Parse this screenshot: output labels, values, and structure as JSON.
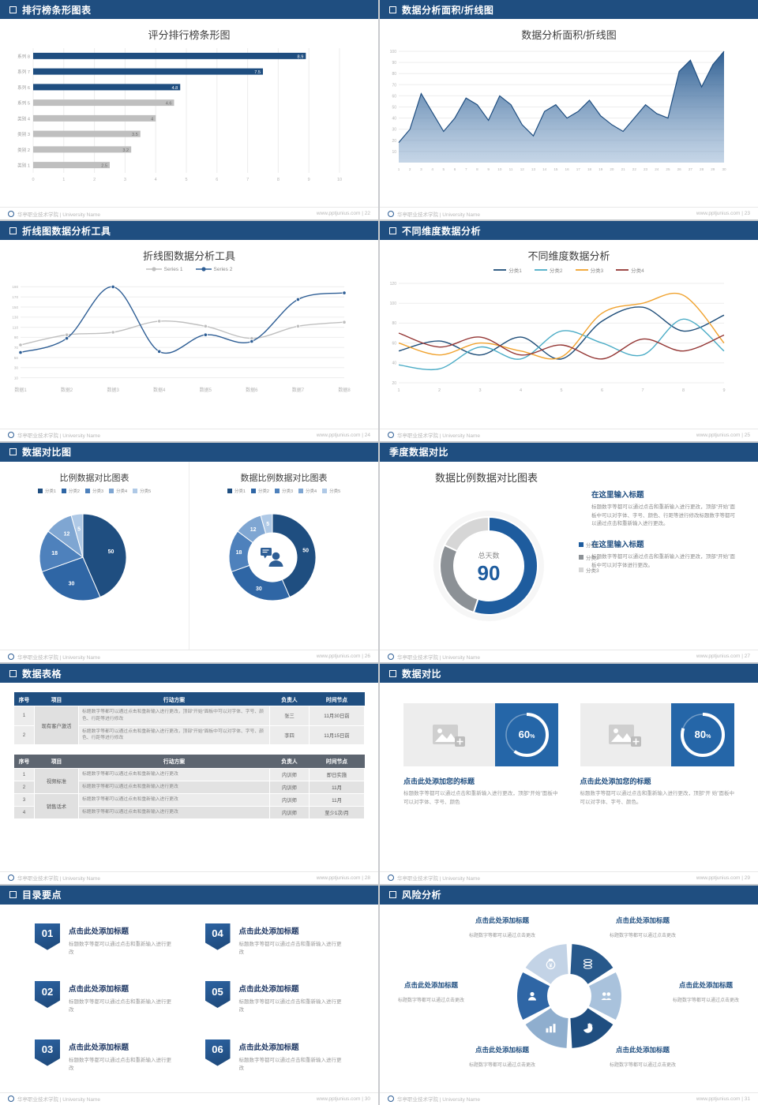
{
  "theme": {
    "header_blue": "#1F4E80",
    "accent_blue": "#2E5E95",
    "bar_gray": "#BFBFBF"
  },
  "footer": {
    "org": "华亭职业技术学院 | University Name",
    "site": "www.pptjunius.com"
  },
  "slides": [
    {
      "header": "排行榜条形图表",
      "page": "22",
      "title": "评分排行榜条形图"
    },
    {
      "header": "数据分析面积/折线图",
      "page": "23",
      "title": "数据分析面积/折线图"
    },
    {
      "header": "折线图数据分析工具",
      "page": "24",
      "title": "折线图数据分析工具"
    },
    {
      "header": "不同维度数据分析",
      "page": "25",
      "title": "不同维度数据分析"
    },
    {
      "header": "数据对比图",
      "page": "26",
      "title_left": "比例数据对比图表",
      "title_right": "数据比例数据对比图表"
    },
    {
      "header": "季度数据对比",
      "page": "27",
      "title": "数据比例数据对比图表",
      "blocks": [
        {
          "heading": "在这里输入标题",
          "body": "标题数字等都可以通过点击和重新输入进行更改，顶部“开始”面板中可以对字体、字号、颜色、行距等进行修改标题数字等都可以通过点击和重新输入进行更改。"
        },
        {
          "heading": "在这里输入标题",
          "body": "标题数字等都可以通过点击和重新输入进行更改，顶部“开始”面板中可以对字体进行更改。"
        }
      ]
    },
    {
      "header": "数据表格",
      "page": "28",
      "table1": {
        "headers": [
          "序号",
          "项目",
          "行动方案",
          "负责人",
          "时间节点"
        ],
        "project": "现有客户激活",
        "rows": [
          {
            "no": "1",
            "plan": "标题数字等都可以通过点击和重新输入进行更改，顶部“开始”面板中可以对字体、字号、颜色、行距等进行修改",
            "owner": "张三",
            "time": "11月30日前"
          },
          {
            "no": "2",
            "plan": "标题数字等都可以通过点击和重新输入进行更改，顶部“开始”面板中可以对字体、字号、颜色、行距等进行修改",
            "owner": "李四",
            "time": "11月15日前"
          }
        ]
      },
      "table2": {
        "headers": [
          "序号",
          "项目",
          "行动方案",
          "负责人",
          "时间节点"
        ],
        "projects": [
          "视频标准",
          "销售话术"
        ],
        "rows": [
          {
            "no": "1",
            "plan": "标题数字等都可以通过点击和重新输入进行更改",
            "owner": "内训师",
            "time": "即日实施"
          },
          {
            "no": "2",
            "plan": "标题数字等都可以通过点击和重新输入进行更改",
            "owner": "内训师",
            "time": "11月"
          },
          {
            "no": "3",
            "plan": "标题数字等都可以通过点击和重新输入进行更改",
            "owner": "内训师",
            "time": "11月"
          },
          {
            "no": "4",
            "plan": "标题数字等都可以通过点击和重新输入进行更改",
            "owner": "内训师",
            "time": "至少1次/月"
          }
        ]
      }
    },
    {
      "header": "数据对比",
      "page": "29",
      "cards": [
        {
          "percent": 60,
          "title": "点击此处添加您的标题",
          "body": "标题数字等都可以通过点击和重新输入进行更改，顶部“开始”面板中可以对字体、字号、颜色"
        },
        {
          "percent": 80,
          "title": "点击此处添加您的标题",
          "body": "标题数字等都可以通过点击和重新输入进行更改，顶部“开 始”面板中可以对字体、字号、颜色。"
        }
      ]
    },
    {
      "header": "目录要点",
      "page": "30",
      "items": [
        {
          "num": "01",
          "title": "点击此处添加标题",
          "body": "标题数字等都可以通过点击和重新输入进行更改"
        },
        {
          "num": "02",
          "title": "点击此处添加标题",
          "body": "标题数字等都可以通过点击和重新输入进行更改"
        },
        {
          "num": "03",
          "title": "点击此处添加标题",
          "body": "标题数字等都可以通过点击和重新输入进行更改"
        },
        {
          "num": "04",
          "title": "点击此处添加标题",
          "body": "标题数字等都可以通过点击和重新输入进行更改"
        },
        {
          "num": "05",
          "title": "点击此处添加标题",
          "body": "标题数字等都可以通过点击和重新输入进行更改"
        },
        {
          "num": "06",
          "title": "点击此处添加标题",
          "body": "标题数字等都可以通过点击和重新输入进行更改"
        }
      ]
    },
    {
      "header": "风险分析",
      "page": "31",
      "icons": [
        "coins-icon",
        "people-icon",
        "pie-icon",
        "chart-icon",
        "person-icon",
        "moneybag-icon"
      ],
      "items": [
        {
          "title": "点击此处添加标题",
          "body": "标题数字等都可以通过点击更改"
        },
        {
          "title": "点击此处添加标题",
          "body": "标题数字等都可以通过点击更改"
        },
        {
          "title": "点击此处添加标题",
          "body": "标题数字等都可以通过点击更改"
        },
        {
          "title": "点击此处添加标题",
          "body": "标题数字等都可以通过点击更改"
        },
        {
          "title": "点击此处添加标题",
          "body": "标题数字等都可以通过点击更改"
        },
        {
          "title": "点击此处添加标题",
          "body": "标题数字等都可以通过点击更改"
        }
      ]
    }
  ],
  "chart_data": [
    {
      "slide": 1,
      "type": "bar",
      "orientation": "horizontal",
      "title": "评分排行榜条形图",
      "categories": [
        "系列 8",
        "系列 7",
        "系列 6",
        "系列 5",
        "类别 4",
        "类别 3",
        "类别 2",
        "类别 1"
      ],
      "values": [
        8.9,
        7.5,
        4.8,
        4.6,
        4,
        3.5,
        3.2,
        2.5
      ],
      "highlight_count": 3,
      "xlim": [
        0,
        10
      ],
      "xticks": [
        0,
        1,
        2,
        3,
        4,
        5,
        6,
        7,
        8,
        9,
        10
      ],
      "highlight_color": "#1F4E80",
      "bar_color": "#BFBFBF"
    },
    {
      "slide": 2,
      "type": "area",
      "title": "数据分析面积/折线图",
      "x": [
        1,
        2,
        3,
        4,
        5,
        6,
        7,
        8,
        9,
        10,
        11,
        12,
        13,
        14,
        15,
        16,
        17,
        18,
        19,
        20,
        21,
        22,
        23,
        24,
        25,
        26,
        27,
        28,
        29,
        30
      ],
      "values": [
        18,
        30,
        62,
        45,
        28,
        40,
        58,
        52,
        38,
        60,
        52,
        34,
        24,
        46,
        52,
        40,
        46,
        56,
        42,
        34,
        28,
        40,
        52,
        44,
        40,
        82,
        92,
        68,
        88,
        100
      ],
      "ylim": [
        0,
        100
      ],
      "yticks": [
        10,
        20,
        30,
        40,
        50,
        60,
        70,
        80,
        90,
        100
      ],
      "line_color": "#1F4E80"
    },
    {
      "slide": 3,
      "type": "line",
      "title": "折线图数据分析工具",
      "categories": [
        "数据1",
        "数据2",
        "数据3",
        "数据4",
        "数据5",
        "数据6",
        "数据7",
        "数据8"
      ],
      "ylim": [
        0,
        200
      ],
      "yticks": [
        10,
        30,
        50,
        70,
        90,
        110,
        130,
        150,
        170,
        190
      ],
      "series": [
        {
          "name": "Series 1",
          "color": "#BFBFBF",
          "values": [
            75,
            95,
            100,
            122,
            112,
            88,
            112,
            120
          ]
        },
        {
          "name": "Series 2",
          "color": "#2E5E95",
          "values": [
            60,
            88,
            190,
            62,
            95,
            82,
            165,
            178
          ]
        }
      ]
    },
    {
      "slide": 4,
      "type": "line",
      "title": "不同维度数据分析",
      "x": [
        1,
        2,
        3,
        4,
        5,
        6,
        7,
        8,
        9
      ],
      "ylim": [
        20,
        120
      ],
      "yticks": [
        20,
        40,
        60,
        80,
        100,
        120
      ],
      "series": [
        {
          "name": "分类1",
          "color": "#1F4E79",
          "values": [
            52,
            62,
            48,
            66,
            44,
            82,
            96,
            72,
            88
          ]
        },
        {
          "name": "分类2",
          "color": "#4BACC6",
          "values": [
            38,
            34,
            56,
            44,
            72,
            60,
            48,
            84,
            52
          ]
        },
        {
          "name": "分类3",
          "color": "#F0A22E",
          "values": [
            60,
            48,
            60,
            52,
            46,
            90,
            100,
            108,
            60
          ]
        },
        {
          "name": "分类4",
          "color": "#943634",
          "values": [
            70,
            56,
            66,
            48,
            58,
            44,
            64,
            52,
            68
          ]
        }
      ]
    },
    {
      "slide": 5,
      "type": "pie",
      "title": "比例数据对比图表",
      "labels": [
        "分类1",
        "分类2",
        "分类3",
        "分类4",
        "分类5"
      ],
      "values": [
        50,
        30,
        18,
        12,
        5
      ],
      "colors": [
        "#1F4E80",
        "#2F66A5",
        "#4E81BC",
        "#7FA6D2",
        "#AFC9E6"
      ]
    },
    {
      "slide": 5,
      "type": "donut",
      "title": "数据比例数据对比图表",
      "labels": [
        "分类1",
        "分类2",
        "分类3",
        "分类4",
        "分类5"
      ],
      "values": [
        50,
        30,
        18,
        12,
        5
      ],
      "colors": [
        "#1F4E80",
        "#2F66A5",
        "#4E81BC",
        "#7FA6D2",
        "#AFC9E6"
      ]
    },
    {
      "slide": 6,
      "type": "donut",
      "title": "数据比例数据对比图表",
      "center_label": "总天数",
      "center_value": "90",
      "labels": [
        "分类1",
        "分类2",
        "分类3"
      ],
      "values": [
        55,
        27,
        18
      ],
      "colors": [
        "#1E5C9E",
        "#8C9196",
        "#D6D6D6"
      ]
    },
    {
      "slide": 8,
      "type": "progress",
      "values": [
        60,
        80
      ],
      "unit": "%"
    }
  ]
}
